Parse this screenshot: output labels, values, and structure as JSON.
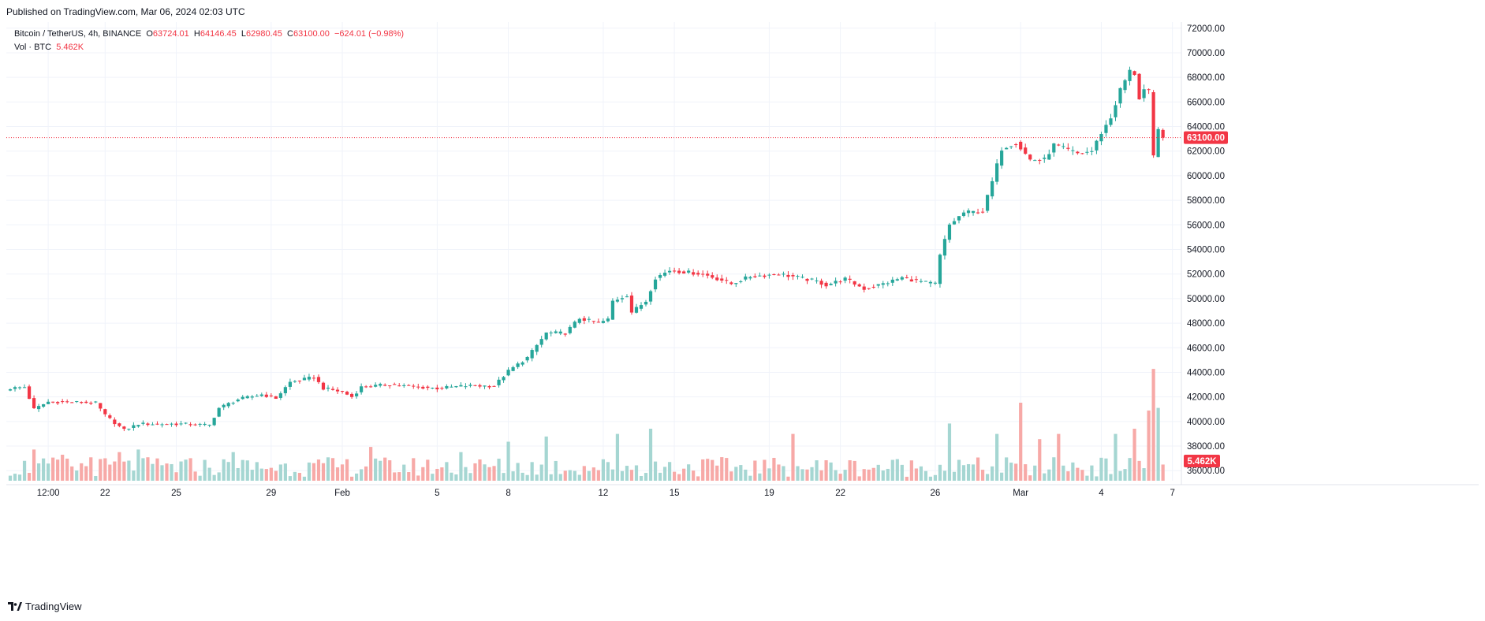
{
  "header": {
    "published": "Published on TradingView.com, Mar 06, 2024 02:03 UTC"
  },
  "legend": {
    "symbol": "Bitcoin / TetherUS, 4h, BINANCE",
    "o_label": "O",
    "o_value": "63724.01",
    "h_label": "H",
    "h_value": "64146.45",
    "l_label": "L",
    "l_value": "62980.45",
    "c_label": "C",
    "c_value": "63100.00",
    "change": "−624.01 (−0.98%)",
    "vol_label": "Vol · BTC",
    "vol_value": "5.462K"
  },
  "footer": {
    "brand": "TradingView",
    "logo_icon": "tradingview-logo-icon"
  },
  "colors": {
    "up": "#26a69a",
    "down": "#f23645",
    "vol_up": "#a5d6d2",
    "vol_down": "#f7a9a7",
    "grid": "#f0f3fa"
  },
  "chart_data": {
    "type": "candlestick",
    "symbol": "BTCUSDT",
    "interval": "4h",
    "ylim": [
      35500,
      72500
    ],
    "y_ticks": [
      "72000.00",
      "70000.00",
      "68000.00",
      "66000.00",
      "64000.00",
      "62000.00",
      "60000.00",
      "58000.00",
      "56000.00",
      "54000.00",
      "52000.00",
      "50000.00",
      "48000.00",
      "46000.00",
      "44000.00",
      "42000.00",
      "40000.00",
      "38000.00",
      "36000.00"
    ],
    "x_ticks": [
      {
        "label": "12:00",
        "i": 8
      },
      {
        "label": "22",
        "i": 20
      },
      {
        "label": "25",
        "i": 35
      },
      {
        "label": "29",
        "i": 55
      },
      {
        "label": "Feb",
        "i": 70
      },
      {
        "label": "5",
        "i": 90
      },
      {
        "label": "8",
        "i": 105
      },
      {
        "label": "12",
        "i": 125
      },
      {
        "label": "15",
        "i": 140
      },
      {
        "label": "19",
        "i": 160
      },
      {
        "label": "22",
        "i": 175
      },
      {
        "label": "26",
        "i": 195
      },
      {
        "label": "Mar",
        "i": 213
      },
      {
        "label": "4",
        "i": 230
      },
      {
        "label": "7",
        "i": 245
      }
    ],
    "last_price": 63100.0,
    "last_price_label": "63100.00",
    "last_volume_label": "5.462K",
    "anchors": [
      [
        0,
        42700
      ],
      [
        3,
        42800
      ],
      [
        5,
        41000
      ],
      [
        8,
        41600
      ],
      [
        12,
        41600
      ],
      [
        18,
        41500
      ],
      [
        20,
        40500
      ],
      [
        24,
        39300
      ],
      [
        27,
        39800
      ],
      [
        31,
        39800
      ],
      [
        36,
        39800
      ],
      [
        42,
        39700
      ],
      [
        44,
        41100
      ],
      [
        48,
        41800
      ],
      [
        53,
        42200
      ],
      [
        56,
        41900
      ],
      [
        59,
        43200
      ],
      [
        64,
        43600
      ],
      [
        66,
        42700
      ],
      [
        70,
        42400
      ],
      [
        72,
        42000
      ],
      [
        74,
        42800
      ],
      [
        80,
        43000
      ],
      [
        86,
        42800
      ],
      [
        90,
        42700
      ],
      [
        96,
        42900
      ],
      [
        102,
        42900
      ],
      [
        105,
        44100
      ],
      [
        109,
        45200
      ],
      [
        113,
        47200
      ],
      [
        117,
        47200
      ],
      [
        120,
        48400
      ],
      [
        124,
        48000
      ],
      [
        126,
        48300
      ],
      [
        127,
        49800
      ],
      [
        130,
        50300
      ],
      [
        131,
        48900
      ],
      [
        134,
        49800
      ],
      [
        136,
        51700
      ],
      [
        139,
        52300
      ],
      [
        146,
        52000
      ],
      [
        150,
        51500
      ],
      [
        152,
        51200
      ],
      [
        156,
        51800
      ],
      [
        162,
        52000
      ],
      [
        165,
        51800
      ],
      [
        170,
        51400
      ],
      [
        172,
        51100
      ],
      [
        176,
        51600
      ],
      [
        180,
        50800
      ],
      [
        184,
        51200
      ],
      [
        188,
        51700
      ],
      [
        193,
        51300
      ],
      [
        195,
        51200
      ],
      [
        196,
        53500
      ],
      [
        198,
        56000
      ],
      [
        201,
        57000
      ],
      [
        205,
        57100
      ],
      [
        207,
        59500
      ],
      [
        209,
        62200
      ],
      [
        210,
        62400
      ],
      [
        212,
        62700
      ],
      [
        215,
        61300
      ],
      [
        218,
        61300
      ],
      [
        220,
        62500
      ],
      [
        225,
        61800
      ],
      [
        228,
        62000
      ],
      [
        230,
        63500
      ],
      [
        232,
        64700
      ],
      [
        234,
        67000
      ],
      [
        236,
        68500
      ],
      [
        237,
        68300
      ],
      [
        238,
        66300
      ],
      [
        239,
        67000
      ],
      [
        240,
        66800
      ],
      [
        241,
        61500
      ],
      [
        242,
        63700
      ],
      [
        243,
        63100
      ]
    ],
    "volume_spikes": [
      [
        5,
        12
      ],
      [
        11,
        10
      ],
      [
        17,
        9
      ],
      [
        23,
        11
      ],
      [
        27,
        12
      ],
      [
        41,
        8
      ],
      [
        47,
        11
      ],
      [
        63,
        7
      ],
      [
        76,
        13
      ],
      [
        95,
        11
      ],
      [
        105,
        15
      ],
      [
        113,
        17
      ],
      [
        128,
        18
      ],
      [
        135,
        20
      ],
      [
        165,
        18
      ],
      [
        198,
        22
      ],
      [
        208,
        18
      ],
      [
        213,
        30
      ],
      [
        217,
        16
      ],
      [
        221,
        18
      ],
      [
        233,
        18
      ],
      [
        237,
        20
      ],
      [
        240,
        27
      ],
      [
        241,
        43
      ],
      [
        242,
        28
      ]
    ]
  }
}
